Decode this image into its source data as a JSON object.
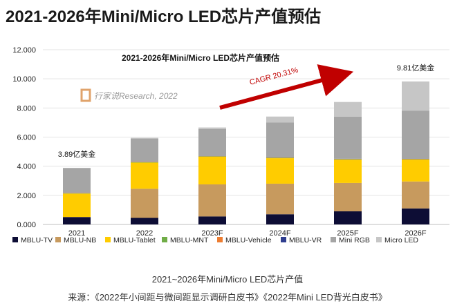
{
  "page": {
    "title": "2021-2026年Mini/Micro LED芯片产值预估",
    "caption": "2021~2026年Mini/Micro LED芯片产值",
    "source": "来源：《2022年小间距与微间距显示调研白皮书》《2022年Mini LED背光白皮书》"
  },
  "chart_data": {
    "type": "bar",
    "stacked": true,
    "title": "2021-2026年Mini/Micro LED芯片产值预估",
    "watermark": "行家说Research, 2022",
    "xlabel": "",
    "ylabel": "",
    "ylim": [
      0,
      12
    ],
    "yticks": [
      "0.000",
      "2.000",
      "4.000",
      "6.000",
      "8.000",
      "10.000",
      "12.000"
    ],
    "categories": [
      "2021",
      "2022",
      "2023F",
      "2024F",
      "2025F",
      "2026F"
    ],
    "series": [
      {
        "name": "MBLU-TV",
        "color": "#0d0d35",
        "values": [
          0.5,
          0.45,
          0.55,
          0.7,
          0.9,
          1.1
        ]
      },
      {
        "name": "MBLU-NB",
        "color": "#c79a5e",
        "values": [
          0.02,
          2.0,
          2.2,
          2.1,
          1.95,
          1.85
        ]
      },
      {
        "name": "MBLU-Tablet",
        "color": "#ffcc00",
        "values": [
          1.6,
          1.8,
          1.9,
          1.75,
          1.6,
          1.5
        ]
      },
      {
        "name": "MBLU-MNT",
        "color": "#70ad47",
        "values": [
          0.02,
          0.02,
          0.03,
          0.03,
          0.03,
          0.03
        ]
      },
      {
        "name": "MBLU-Vehicle",
        "color": "#ed7d31",
        "values": [
          0.02,
          0.02,
          0.02,
          0.02,
          0.02,
          0.03
        ]
      },
      {
        "name": "MBLU-VR",
        "color": "#2f3e8f",
        "values": [
          0.01,
          0.01,
          0.01,
          0.01,
          0.01,
          0.01
        ]
      },
      {
        "name": "Mini RGB",
        "color": "#a5a5a5",
        "values": [
          1.7,
          1.6,
          1.85,
          2.4,
          2.9,
          3.3
        ]
      },
      {
        "name": "Micro LED",
        "color": "#c6c6c6",
        "values": [
          0.02,
          0.05,
          0.1,
          0.4,
          1.0,
          2.0
        ]
      }
    ],
    "annotations": [
      {
        "text": "3.89亿美金",
        "category": "2021",
        "value": 3.89
      },
      {
        "text": "9.81亿美金",
        "category": "2026F",
        "value": 9.81
      }
    ],
    "trend": {
      "text": "CAGR 20.31%",
      "color": "#c00000"
    },
    "legend_position": "bottom"
  }
}
